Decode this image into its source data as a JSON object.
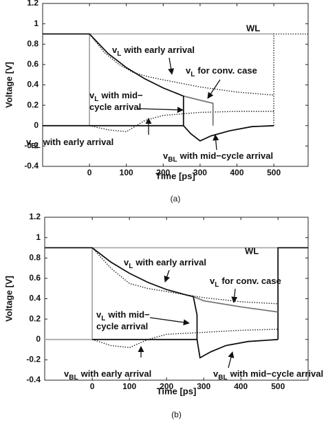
{
  "chart_data": [
    {
      "type": "line",
      "xlabel": "Time [ps]",
      "ylabel": "Voltage [V]",
      "caption": "(a)",
      "xlim": [
        -127,
        593
      ],
      "ylim": [
        -0.4,
        1.2
      ],
      "xticks": [
        0,
        100,
        200,
        300,
        400,
        500
      ],
      "yticks": [
        1.2,
        1,
        0.8,
        0.6,
        0.4,
        0.2,
        0,
        -0.2,
        -0.4
      ],
      "wl_label": "WL",
      "series": [
        {
          "color": "#aaaaaa",
          "style": "solid",
          "x": [
            0,
            0,
            500
          ],
          "values": [
            0,
            0.9,
            0.9
          ]
        },
        {
          "color": "#222222",
          "style": "dotted",
          "x": [
            500,
            500,
            593
          ],
          "values": [
            0,
            0.9,
            0.9
          ]
        },
        {
          "color": "#222222",
          "style": "dotted",
          "x": [
            0,
            40,
            80,
            120,
            160,
            200,
            300,
            400,
            500
          ],
          "values": [
            0.9,
            0.72,
            0.6,
            0.52,
            0.48,
            0.45,
            0.38,
            0.33,
            0.3
          ]
        },
        {
          "color": "#222222",
          "style": "dotted",
          "x": [
            0,
            50,
            100,
            150,
            200,
            300,
            400,
            500
          ],
          "values": [
            0,
            -0.04,
            -0.06,
            0.05,
            0.1,
            0.13,
            0.14,
            0.14
          ]
        },
        {
          "color": "#777777",
          "style": "solid",
          "x": [
            255,
            300,
            335,
            335
          ],
          "values": [
            0.29,
            0.25,
            0.22,
            0
          ]
        },
        {
          "color": "#111111",
          "style": "solid",
          "x": [
            -127,
            0,
            50,
            100,
            150,
            200,
            255,
            255
          ],
          "values": [
            0.9,
            0.9,
            0.71,
            0.57,
            0.46,
            0.37,
            0.29,
            0
          ]
        },
        {
          "color": "#111111",
          "style": "solid",
          "x": [
            -127,
            255,
            275,
            300,
            330,
            380,
            440,
            500
          ],
          "values": [
            0,
            0,
            -0.08,
            -0.15,
            -0.1,
            -0.05,
            -0.01,
            0
          ]
        }
      ],
      "annotations": [
        {
          "v": "v",
          "sub": "L",
          "lines": [
            "with early arrival"
          ],
          "color": "#888888"
        },
        {
          "v": "v",
          "sub": "L",
          "lines": [
            "for conv. case"
          ],
          "color": "#111111"
        },
        {
          "v": "v",
          "sub": "L",
          "lines": [
            "with mid−",
            "cycle arrival"
          ],
          "color": "#111111"
        },
        {
          "v": "v",
          "sub": "BL",
          "lines": [
            "with early arrival"
          ],
          "color": "#888888"
        },
        {
          "v": "v",
          "sub": "BL",
          "lines": [
            "with mid−cycle arrival"
          ],
          "color": "#111111"
        }
      ]
    },
    {
      "type": "line",
      "xlabel": "Time [ps]",
      "ylabel": "Voltage [V]",
      "caption": "(b)",
      "xlim": [
        -128,
        581
      ],
      "ylim": [
        -0.4,
        1.2
      ],
      "xticks": [
        0,
        100,
        200,
        300,
        400,
        500
      ],
      "yticks": [
        1.2,
        1,
        0.8,
        0.6,
        0.4,
        0.2,
        0,
        -0.2,
        -0.4
      ],
      "wl_label": "WL",
      "series": [
        {
          "color": "#aaaaaa",
          "style": "solid",
          "x": [
            -128,
            0,
            0,
            500
          ],
          "values": [
            0,
            0,
            0.9,
            0.9
          ]
        },
        {
          "color": "#111111",
          "style": "solid",
          "x": [
            500,
            500,
            581
          ],
          "values": [
            0,
            0.9,
            0.9
          ]
        },
        {
          "color": "#222222",
          "style": "dotted",
          "x": [
            0,
            50,
            100,
            150,
            200,
            300,
            400,
            500
          ],
          "values": [
            0.9,
            0.7,
            0.55,
            0.5,
            0.47,
            0.41,
            0.37,
            0.35
          ]
        },
        {
          "color": "#222222",
          "style": "dotted",
          "x": [
            0,
            50,
            100,
            150,
            200,
            300,
            400,
            500
          ],
          "values": [
            0,
            -0.06,
            -0.08,
            0,
            0.05,
            0.07,
            0.09,
            0.1
          ]
        },
        {
          "color": "#777777",
          "style": "solid",
          "x": [
            272,
            300,
            400,
            500
          ],
          "values": [
            0.42,
            0.38,
            0.32,
            0.27
          ]
        },
        {
          "color": "#111111",
          "style": "solid",
          "x": [
            -128,
            0,
            50,
            100,
            150,
            200,
            250,
            272,
            282,
            282
          ],
          "values": [
            0.9,
            0.9,
            0.76,
            0.65,
            0.56,
            0.49,
            0.44,
            0.42,
            0.24,
            0
          ]
        },
        {
          "color": "#111111",
          "style": "solid",
          "x": [
            0,
            282,
            290,
            320,
            360,
            420,
            500
          ],
          "values": [
            0,
            0,
            -0.18,
            -0.12,
            -0.06,
            -0.02,
            0
          ]
        }
      ],
      "annotations": [
        {
          "v": "v",
          "sub": "L",
          "lines": [
            "with early arrival"
          ],
          "color": "#888888"
        },
        {
          "v": "v",
          "sub": "L",
          "lines": [
            "for conv. case"
          ],
          "color": "#111111"
        },
        {
          "v": "v",
          "sub": "L",
          "lines": [
            "with mid−",
            "cycle arrival"
          ],
          "color": "#111111"
        },
        {
          "v": "v",
          "sub": "BL",
          "lines": [
            "with early arrival"
          ],
          "color": "#888888"
        },
        {
          "v": "v",
          "sub": "BL",
          "lines": [
            "with mid−cycle arrival"
          ],
          "color": "#111111"
        }
      ]
    }
  ]
}
